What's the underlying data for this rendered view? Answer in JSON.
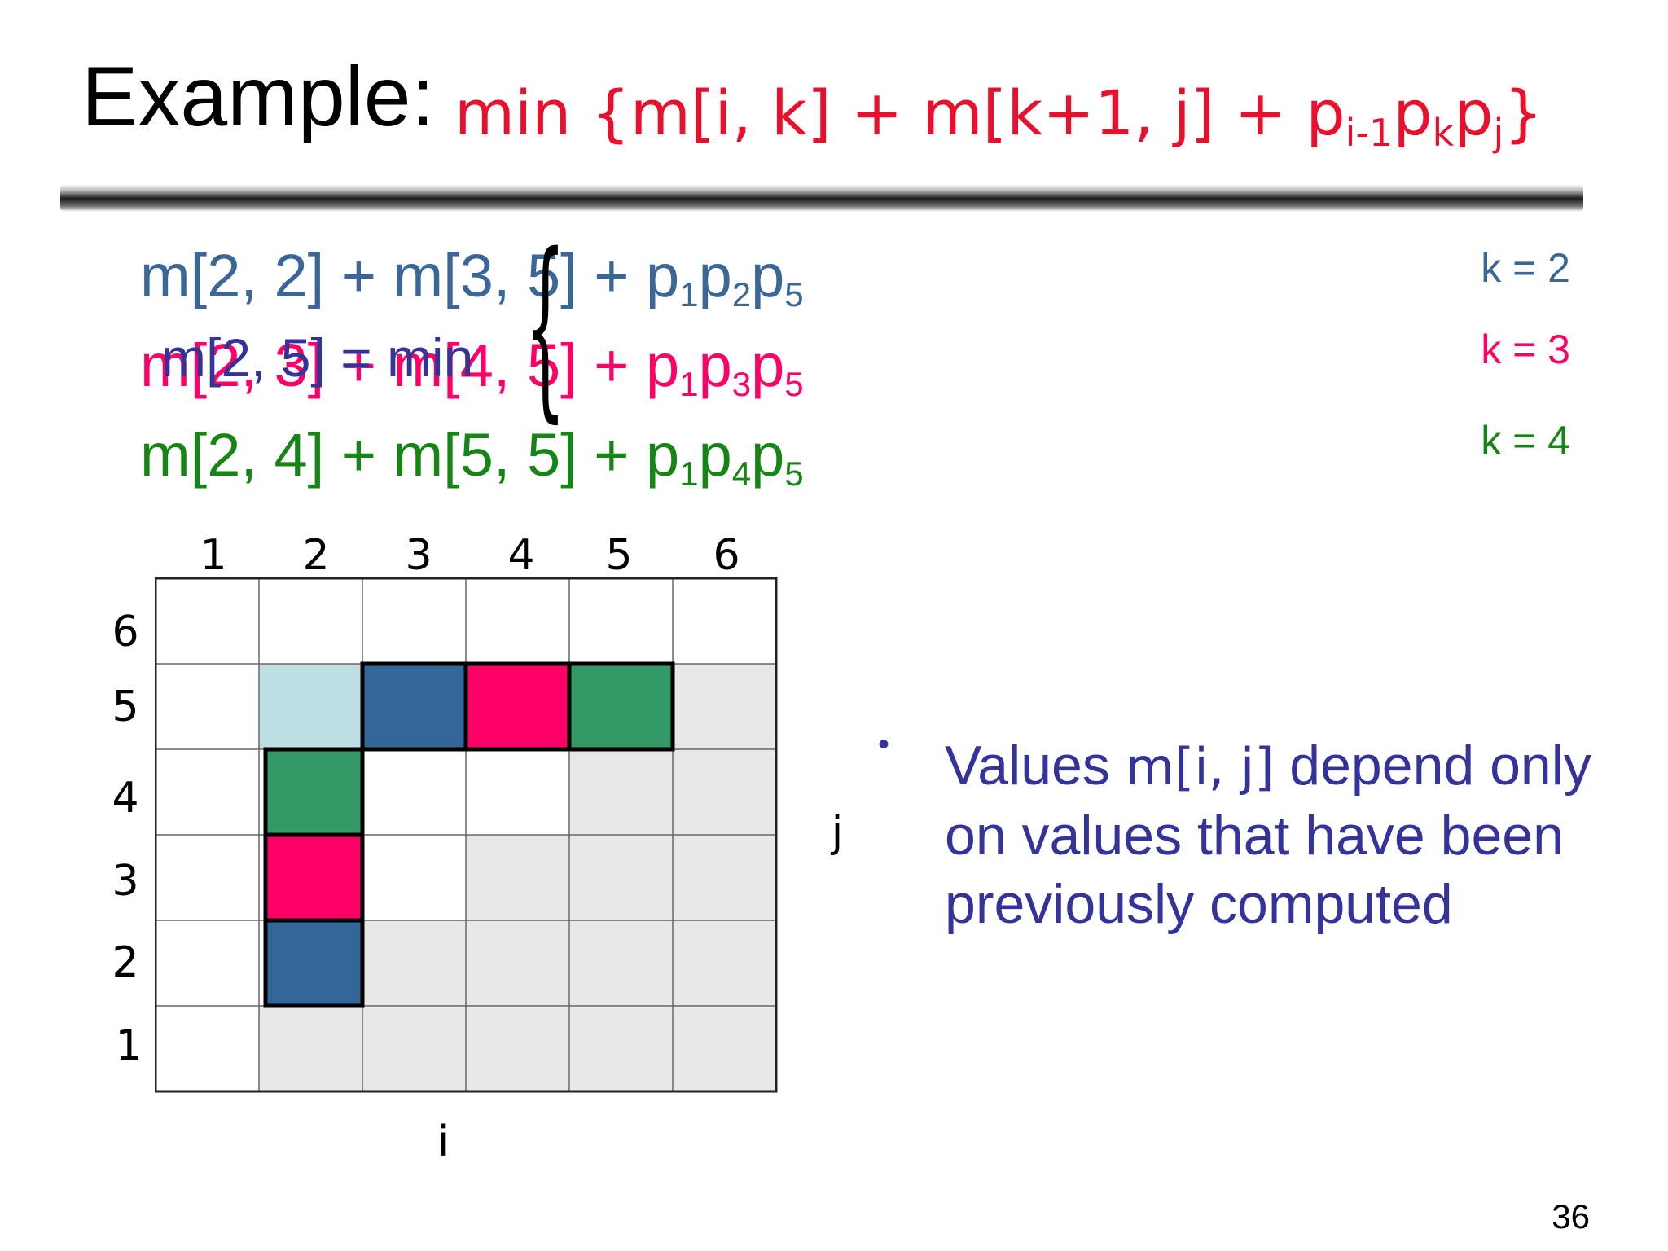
{
  "title": {
    "label": "Example:",
    "formula_main": "min {m[i, k] + m[k+1, j] + p",
    "formula_sub1": "i-1",
    "formula_p2": "p",
    "formula_sub2": "k",
    "formula_p3": "p",
    "formula_sub3": "j",
    "formula_end": "}"
  },
  "equations": {
    "row_k2": {
      "main": "m[2, 2] + m[3, 5] + p",
      "s1": "1",
      "p2": "p",
      "s2": "2",
      "p3": "p",
      "s3": "5"
    },
    "row_k3": {
      "main": "m[2, 3] + m[4, 5] + p",
      "s1": "1",
      "p2": "p",
      "s2": "3",
      "p3": "p",
      "s3": "5"
    },
    "row_k4": {
      "main": "m[2, 4] + m[5, 5] + p",
      "s1": "1",
      "p2": "p",
      "s2": "4",
      "p3": "p",
      "s3": "5"
    },
    "overlay": "m[2, 5] = min",
    "brace": "{"
  },
  "k_labels": {
    "k2": "k = 2",
    "k3": "k = 3",
    "k4": "k = 4"
  },
  "grid": {
    "columns": [
      "1",
      "2",
      "3",
      "4",
      "5",
      "6"
    ],
    "rows_top_to_bottom": [
      "6",
      "5",
      "4",
      "3",
      "2",
      "1"
    ],
    "axis_i": "i",
    "axis_j": "j"
  },
  "bullet": {
    "text_before": "Values ",
    "code": "m[i, j]",
    "text_after": " depend only on values that have been previously computed"
  },
  "page_number": "36",
  "colors": {
    "title_formula": "#e8102c",
    "blue": "#3a6797",
    "pink": "#ff0066",
    "green": "#178516",
    "bullet": "#333399",
    "light_blue_cell": "#bce0e3",
    "grey_cell": "#e8e8e8"
  }
}
